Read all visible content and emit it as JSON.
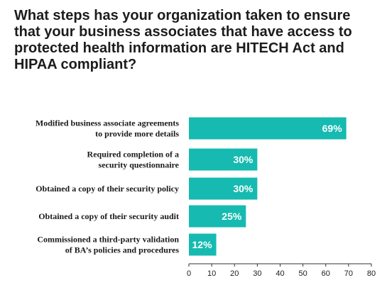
{
  "chart_data": {
    "type": "bar",
    "orientation": "horizontal",
    "title": "What steps has your organization taken to ensure that your business associates that have access to protected health information are HITECH Act and HIPAA compliant?",
    "categories": [
      [
        "Modified business associate agreements",
        "to provide more details"
      ],
      [
        "Required completion of a",
        "security questionnaire"
      ],
      [
        "Obtained a copy of their security policy"
      ],
      [
        "Obtained a copy of their security audit"
      ],
      [
        "Commissioned a third-party validation",
        "of BA’s policies and procedures"
      ]
    ],
    "values": [
      69,
      30,
      30,
      25,
      12
    ],
    "data_labels": [
      "69%",
      "30%",
      "30%",
      "25%",
      "12%"
    ],
    "xlim": [
      0,
      80
    ],
    "xticks": [
      0,
      10,
      20,
      30,
      40,
      50,
      60,
      70,
      80
    ],
    "grid": false,
    "colors": {
      "bar": "#16bab0",
      "data_label": "#ffffff"
    }
  }
}
